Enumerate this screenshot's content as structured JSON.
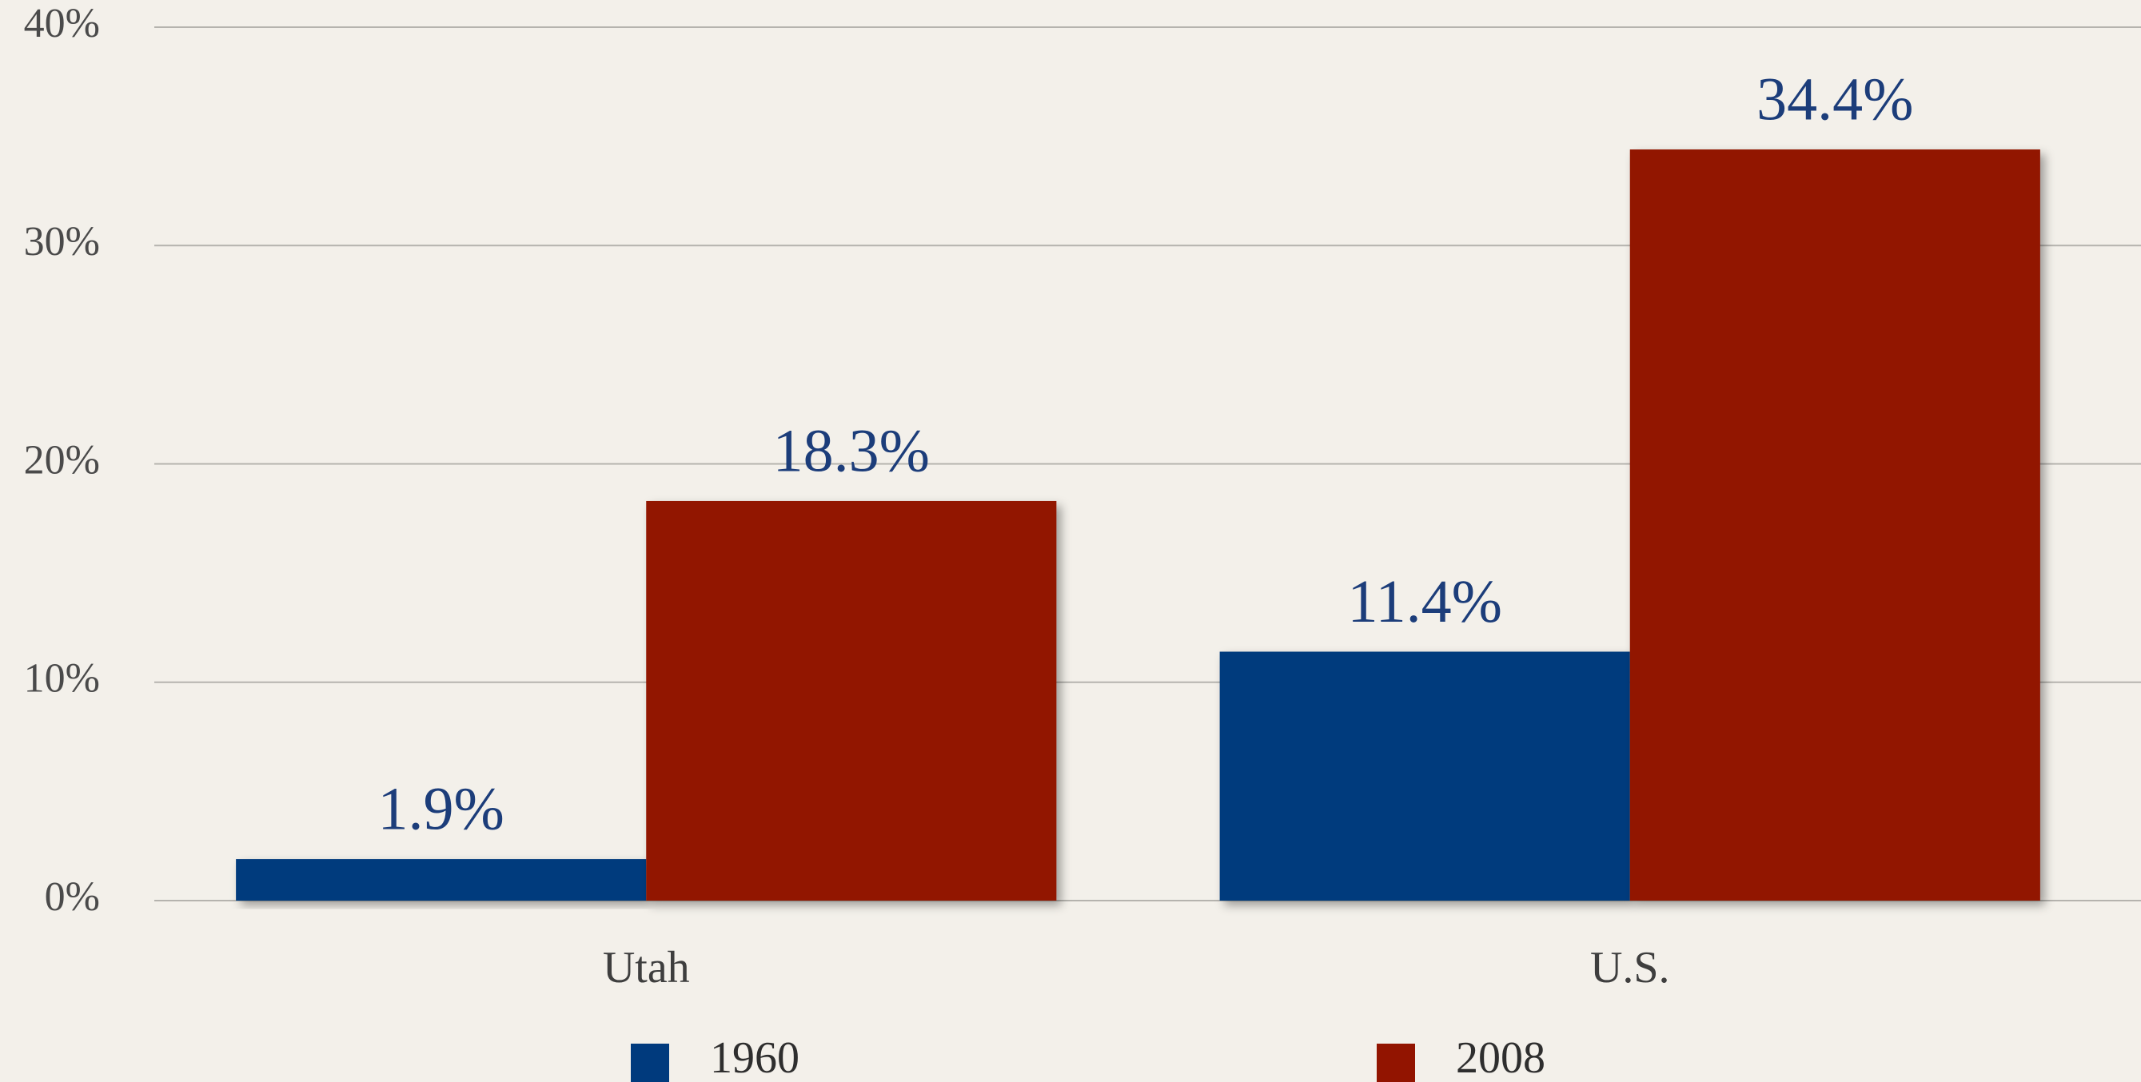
{
  "chart_data": {
    "type": "bar",
    "categories": [
      "Utah",
      "U.S."
    ],
    "series": [
      {
        "name": "1960",
        "color": "#003a7d",
        "values": [
          1.9,
          11.4
        ],
        "value_labels": [
          "1.9%",
          "11.4%"
        ]
      },
      {
        "name": "2008",
        "color": "#921400",
        "values": [
          18.3,
          34.4
        ],
        "value_labels": [
          "18.3%",
          "34.4%"
        ]
      }
    ],
    "ylim": [
      0,
      40
    ],
    "yticks": [
      {
        "value": 0,
        "label": "0%"
      },
      {
        "value": 10,
        "label": "10%"
      },
      {
        "value": 20,
        "label": "20%"
      },
      {
        "value": 30,
        "label": "30%"
      },
      {
        "value": 40,
        "label": "40%"
      }
    ],
    "grid": true
  }
}
